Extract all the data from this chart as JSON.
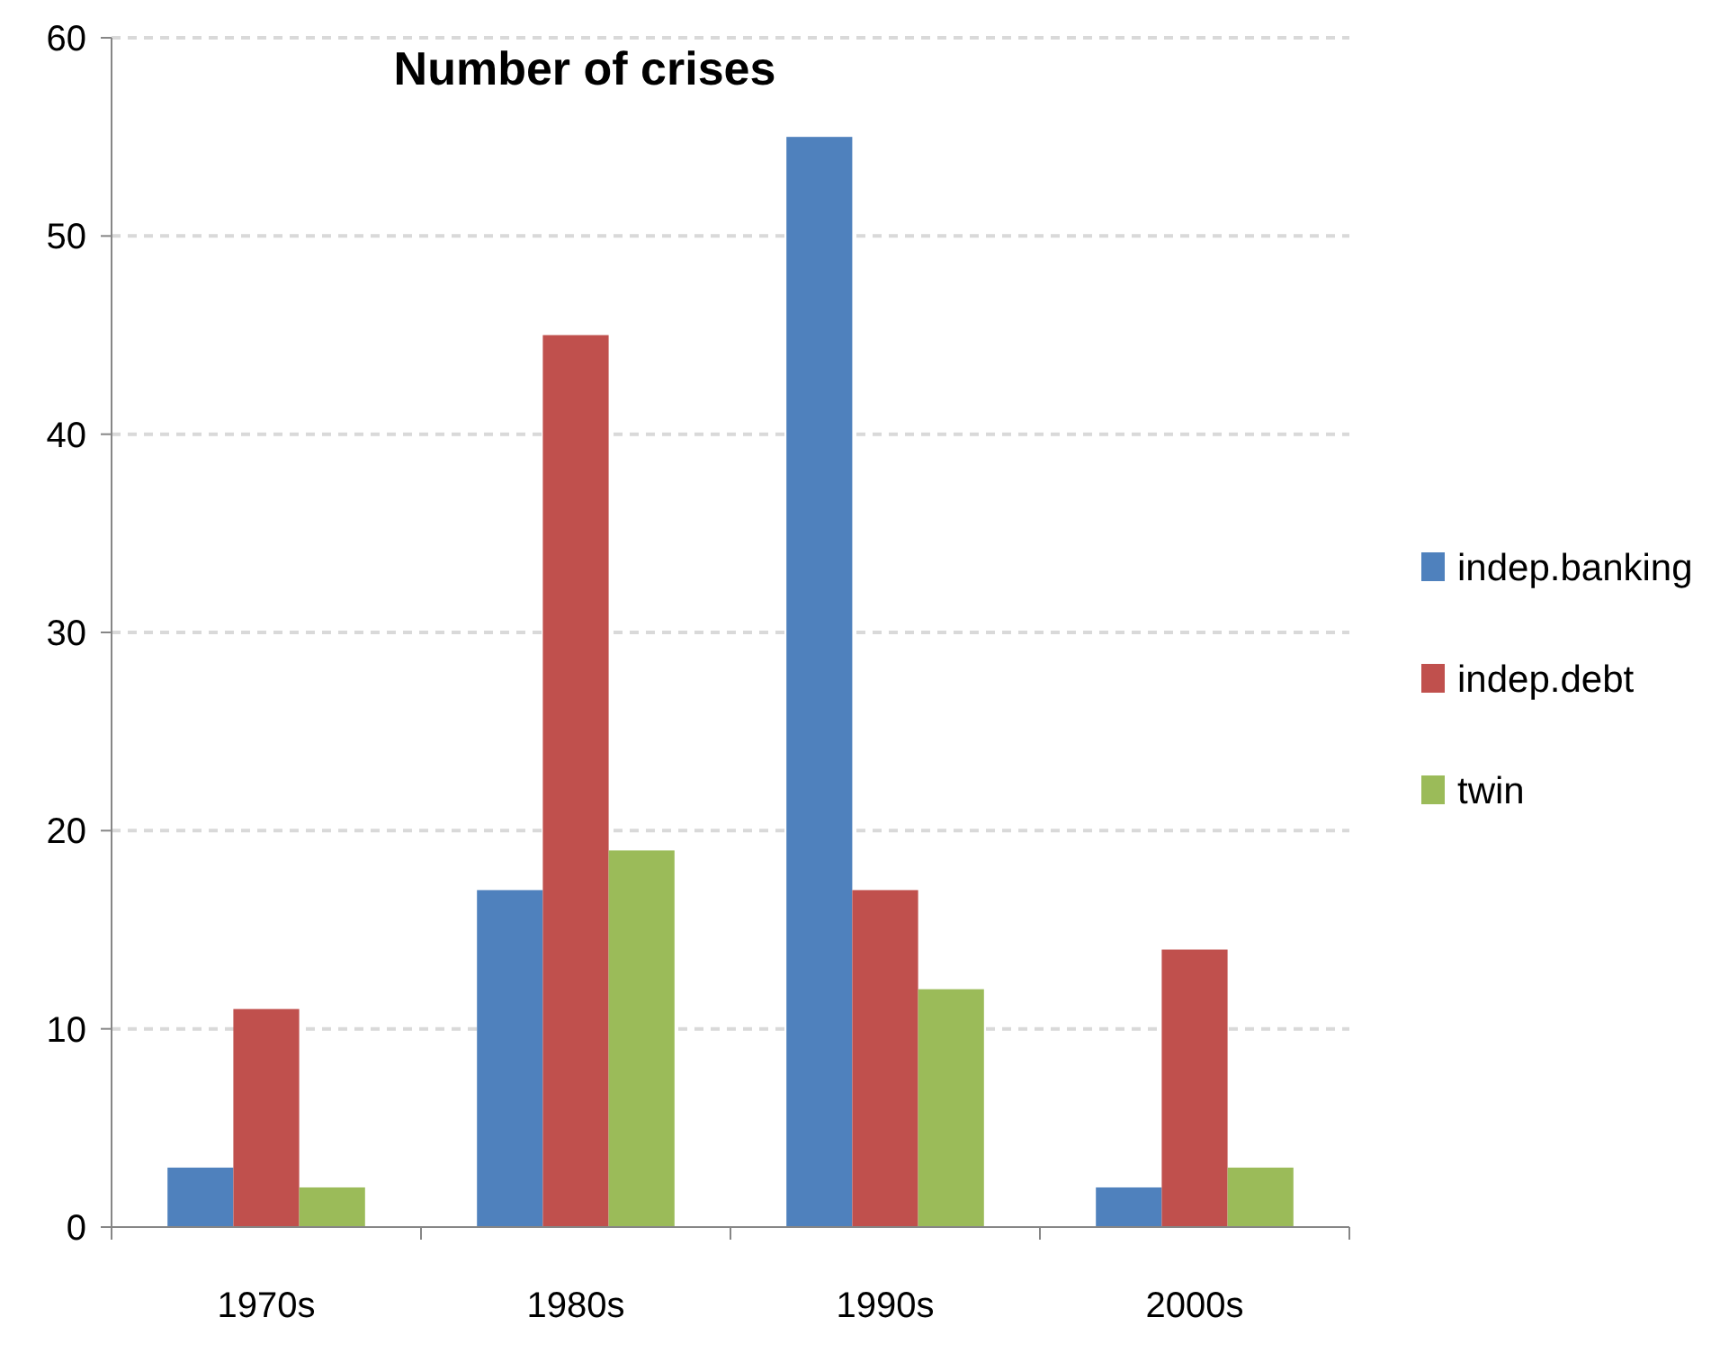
{
  "chart_data": {
    "type": "bar",
    "title": "Number of crises",
    "categories": [
      "1970s",
      "1980s",
      "1990s",
      "2000s"
    ],
    "series": [
      {
        "name": "indep.banking",
        "color": "#4f81bd",
        "values": [
          3,
          17,
          55,
          2
        ]
      },
      {
        "name": "indep.debt",
        "color": "#c0504d",
        "values": [
          11,
          45,
          17,
          14
        ]
      },
      {
        "name": "twin",
        "color": "#9bbb59",
        "values": [
          2,
          19,
          12,
          3
        ]
      }
    ],
    "ylim": [
      0,
      60
    ],
    "yticks": [
      0,
      10,
      20,
      30,
      40,
      50,
      60
    ],
    "grid": "y",
    "legend": "right"
  }
}
